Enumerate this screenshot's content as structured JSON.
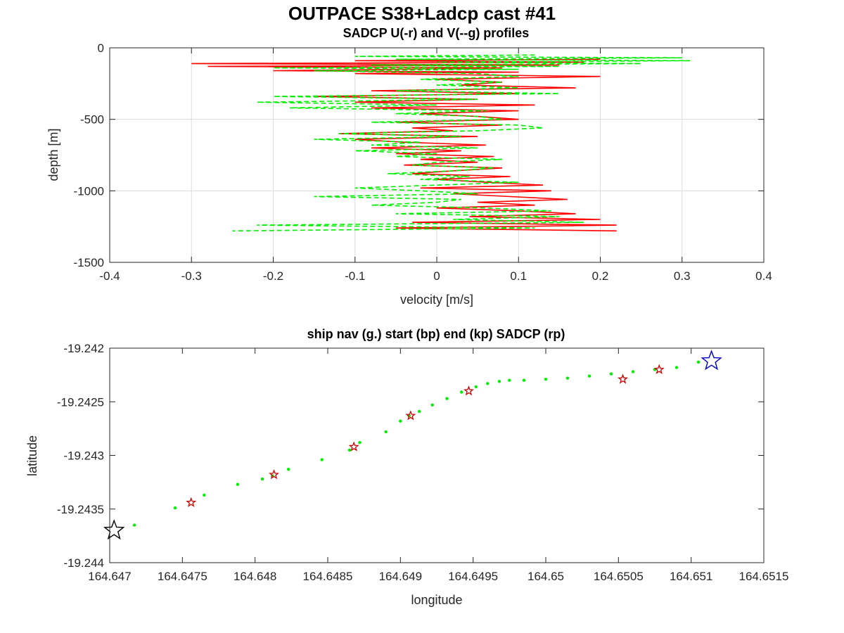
{
  "figure_title": "OUTPACE S38+Ladcp cast #41",
  "chart_data": [
    {
      "type": "line",
      "title": "SADCP U(-r) and V(--g) profiles",
      "xlabel": "velocity [m/s]",
      "ylabel": "depth [m]",
      "xlim": [
        -0.4,
        0.4
      ],
      "ylim": [
        -1500,
        0
      ],
      "xticks": [
        "-0.4",
        "-0.3",
        "-0.2",
        "-0.1",
        "0",
        "0.1",
        "0.2",
        "0.3",
        "0.4"
      ],
      "yticks": [
        "-1500",
        "-1000",
        "-500",
        "0"
      ],
      "grid": true,
      "series": [
        {
          "color": "#ff0000",
          "style": "solid",
          "depth": [
            -80,
            -90,
            -100,
            -110,
            -120,
            -130,
            -140,
            -150,
            -160,
            -170,
            -180,
            -200,
            -220,
            -240,
            -260,
            -280,
            -300,
            -320,
            -340,
            -360,
            -380,
            -400,
            -420,
            -440,
            -460,
            -480,
            -500,
            -520,
            -540,
            -560,
            -580,
            -600,
            -620,
            -640,
            -660,
            -680,
            -700,
            -720,
            -740,
            -760,
            -780,
            -800,
            -820,
            -840,
            -860,
            -880,
            -900,
            -920,
            -940,
            -960,
            -980,
            -1000,
            -1020,
            -1040,
            -1060,
            -1080,
            -1100,
            -1120,
            -1140,
            -1160,
            -1180,
            -1200,
            -1220,
            -1240,
            -1260,
            -1280
          ],
          "values": [
            0.2,
            -0.1,
            0.18,
            -0.3,
            0.15,
            -0.28,
            0.08,
            -0.05,
            -0.2,
            0.1,
            -0.1,
            0.2,
            0.0,
            0.08,
            0.03,
            0.17,
            -0.08,
            0.1,
            -0.15,
            0.05,
            -0.1,
            0.12,
            -0.08,
            0.1,
            -0.02,
            0.05,
            0.1,
            -0.05,
            0.08,
            -0.03,
            0.02,
            -0.12,
            0.05,
            -0.1,
            -0.04,
            0.06,
            -0.08,
            0.03,
            -0.05,
            0.07,
            -0.02,
            0.05,
            -0.04,
            0.08,
            0.02,
            -0.03,
            0.09,
            0.0,
            0.06,
            0.13,
            -0.02,
            0.14,
            0.02,
            0.09,
            0.16,
            0.05,
            0.12,
            0.0,
            0.1,
            0.17,
            0.04,
            0.2,
            -0.03,
            0.22,
            -0.05,
            0.22
          ]
        },
        {
          "color": "#00ee00",
          "style": "dashed",
          "depth": [
            -50,
            -60,
            -70,
            -80,
            -90,
            -100,
            -110,
            -120,
            -130,
            -140,
            -150,
            -160,
            -180,
            -200,
            -220,
            -240,
            -260,
            -280,
            -300,
            -320,
            -340,
            -360,
            -380,
            -400,
            -420,
            -440,
            -460,
            -480,
            -500,
            -520,
            -540,
            -560,
            -580,
            -600,
            -620,
            -640,
            -660,
            -680,
            -700,
            -720,
            -740,
            -760,
            -780,
            -800,
            -820,
            -840,
            -860,
            -880,
            -900,
            -920,
            -940,
            -960,
            -980,
            -1000,
            -1020,
            -1040,
            -1060,
            -1080,
            -1100,
            -1120,
            -1140,
            -1160,
            -1180,
            -1200,
            -1220,
            -1240,
            -1260,
            -1280
          ],
          "values": [
            0.12,
            -0.1,
            0.3,
            -0.05,
            0.31,
            0.0,
            0.25,
            -0.08,
            0.15,
            -0.2,
            0.1,
            -0.15,
            0.05,
            0.1,
            -0.02,
            0.08,
            0.0,
            0.1,
            -0.05,
            0.15,
            -0.2,
            0.05,
            -0.22,
            0.0,
            -0.18,
            0.06,
            -0.05,
            0.05,
            0.08,
            -0.08,
            0.1,
            0.13,
            0.05,
            -0.12,
            0.03,
            -0.15,
            -0.02,
            -0.08,
            0.05,
            -0.1,
            0.0,
            -0.05,
            0.08,
            0.0,
            -0.03,
            0.07,
            0.02,
            -0.06,
            0.04,
            -0.02,
            0.1,
            0.0,
            -0.1,
            -0.02,
            0.05,
            -0.15,
            0.03,
            0.0,
            -0.08,
            0.06,
            0.14,
            -0.05,
            0.15,
            0.02,
            0.18,
            -0.22,
            0.12,
            -0.25
          ]
        }
      ]
    },
    {
      "type": "scatter",
      "title": "ship nav (g.) start (bp) end (kp) SADCP (rp)",
      "xlabel": "longitude",
      "ylabel": "latitude",
      "xlim": [
        164.647,
        164.6515
      ],
      "ylim": [
        -19.244,
        -19.242
      ],
      "xticks": [
        "164.647",
        "164.6475",
        "164.648",
        "164.6485",
        "164.649",
        "164.6495",
        "164.65",
        "164.6505",
        "164.651",
        "164.6515"
      ],
      "yticks": [
        "-19.244",
        "-19.2435",
        "-19.243",
        "-19.2425",
        "-19.242"
      ],
      "grid": false,
      "ship_nav_color": "#00ee00",
      "sadcp_color": "#cc0000",
      "start_color": "#0000cc",
      "end_color": "#000000",
      "ship_nav": {
        "lon": [
          164.64717,
          164.64745,
          164.64765,
          164.64788,
          164.64805,
          164.64812,
          164.64823,
          164.64846,
          164.64865,
          164.64872,
          164.6489,
          164.649,
          164.64906,
          164.64913,
          164.64922,
          164.64932,
          164.64942,
          164.64952,
          164.6496,
          164.64968,
          164.64975,
          164.64985,
          164.65,
          164.65015,
          164.6503,
          164.65045,
          164.6506,
          164.65075,
          164.6509,
          164.65105
        ],
        "lat": [
          -19.24365,
          -19.24349,
          -19.24337,
          -19.24327,
          -19.24322,
          -19.24319,
          -19.24313,
          -19.24304,
          -19.24295,
          -19.24288,
          -19.24278,
          -19.24268,
          -19.24263,
          -19.24259,
          -19.24253,
          -19.24247,
          -19.24241,
          -19.24236,
          -19.24233,
          -19.24231,
          -19.2423,
          -19.2423,
          -19.24229,
          -19.24228,
          -19.24226,
          -19.24224,
          -19.24222,
          -19.2422,
          -19.24218,
          -19.24213
        ]
      },
      "sadcp": {
        "lon": [
          164.64756,
          164.64813,
          164.64868,
          164.64907,
          164.64947,
          164.65053,
          164.65078
        ],
        "lat": [
          -19.24344,
          -19.24318,
          -19.24292,
          -19.24263,
          -19.2424,
          -19.24229,
          -19.2422
        ]
      },
      "start": {
        "lon": 164.65114,
        "lat": -19.24212
      },
      "end": {
        "lon": 164.64703,
        "lat": -19.2437
      }
    }
  ]
}
